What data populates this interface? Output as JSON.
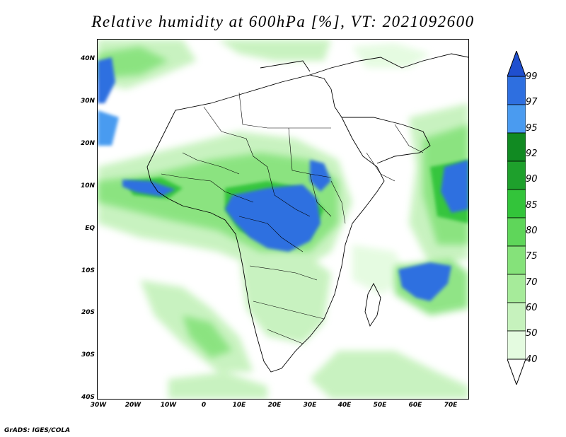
{
  "title": "Relative humidity at 600hPa [%], VT: 2021092600",
  "credit": "GrADS: IGES/COLA",
  "lat_labels": [
    "40N",
    "30N",
    "20N",
    "10N",
    "EQ",
    "10S",
    "20S",
    "30S",
    "40S"
  ],
  "lon_labels": [
    "30W",
    "20W",
    "10W",
    "0",
    "10E",
    "20E",
    "30E",
    "40E",
    "50E",
    "60E",
    "70E"
  ],
  "colorbar": {
    "labels": [
      "99",
      "97",
      "95",
      "92",
      "90",
      "85",
      "80",
      "75",
      "70",
      "60",
      "50",
      "40"
    ],
    "levels": [
      40,
      50,
      60,
      70,
      75,
      80,
      85,
      90,
      92,
      95,
      97,
      99
    ],
    "colors": [
      "#ffffff",
      "#e4fbe0",
      "#c6f2bd",
      "#a6eb9a",
      "#85e27a",
      "#5fd65a",
      "#33c43a",
      "#1ea02c",
      "#118a22",
      "#4a9bf0",
      "#2e6fe0",
      "#1f4fcf"
    ]
  }
}
